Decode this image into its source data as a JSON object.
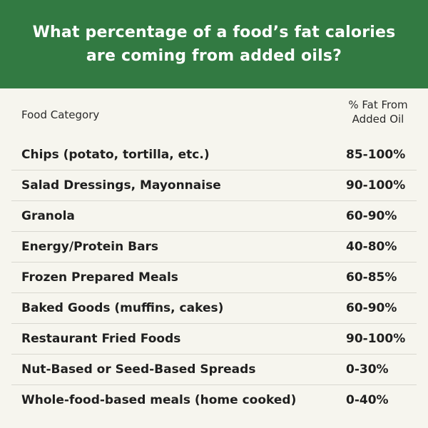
{
  "header": {
    "title": "What percentage of a food’s fat calories are coming from added oils?",
    "background_color": "#327a42"
  },
  "table": {
    "col_food_label": "Food Category",
    "col_pct_label": "% Fat From Added Oil",
    "rows": [
      {
        "food": "Chips (potato, tortilla, etc.)",
        "pct": "85-100%"
      },
      {
        "food": "Salad Dressings, Mayonnaise",
        "pct": "90-100%"
      },
      {
        "food": "Granola",
        "pct": "60-90%"
      },
      {
        "food": "Energy/Protein Bars",
        "pct": "40-80%"
      },
      {
        "food": "Frozen Prepared Meals",
        "pct": "60-85%"
      },
      {
        "food": "Baked Goods (muffins, cakes)",
        "pct": "60-90%"
      },
      {
        "food": "Restaurant Fried Foods",
        "pct": "90-100%"
      },
      {
        "food": "Nut-Based or Seed-Based Spreads",
        "pct": "0-30%"
      },
      {
        "food": "Whole-food-based meals (home cooked)",
        "pct": "0-40%"
      }
    ]
  }
}
